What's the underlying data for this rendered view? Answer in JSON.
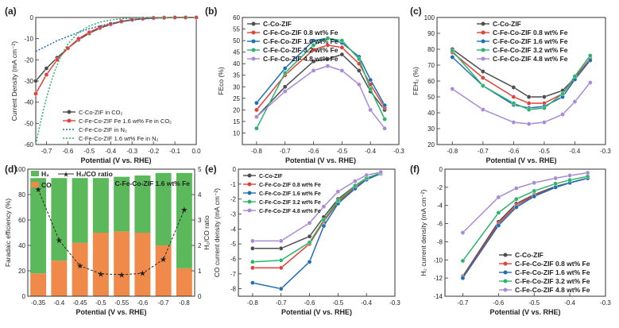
{
  "colors": {
    "c0": "#4d4d4d",
    "c1": "#e0413a",
    "c2": "#1f6eb5",
    "c3": "#2db36b",
    "c4": "#a88ad6",
    "h2": "#5bb85b",
    "co": "#f08a4b",
    "dash": "#2c2c2c"
  },
  "chart_data": [
    {
      "panel": "(a)",
      "type": "line",
      "xlabel": "Potential (V vs. RHE)",
      "ylabel": "Current Density (mA cm⁻²)",
      "xlim": [
        -0.75,
        0.0
      ],
      "ylim": [
        -60,
        0
      ],
      "xticks": [
        -0.7,
        -0.6,
        -0.5,
        -0.4,
        -0.3,
        -0.2,
        -0.1,
        0.0
      ],
      "xtick_labels": [
        "-0.7",
        "-0.6",
        "-0.5",
        "-0.4",
        "-0.3",
        "-0.2",
        "-0.1",
        "0.0"
      ],
      "yticks": [
        0,
        -10,
        -20,
        -30,
        -40,
        -50,
        -60
      ],
      "ytick_labels": [
        "0",
        "-10",
        "-20",
        "-30",
        "-40",
        "-50",
        "-60"
      ],
      "legend_position": "bottom-right",
      "series": [
        {
          "name": "C-Co-ZIF in CO₂",
          "color_key": "c0",
          "dash": false,
          "x": [
            -0.75,
            -0.7,
            -0.65,
            -0.6,
            -0.55,
            -0.5,
            -0.45,
            -0.4,
            -0.35,
            -0.3,
            -0.25,
            -0.2,
            -0.15,
            -0.1,
            -0.05,
            0.0
          ],
          "y": [
            -30,
            -24,
            -19,
            -14.5,
            -10.5,
            -7.5,
            -5,
            -3.3,
            -2,
            -1.2,
            -0.6,
            -0.3,
            -0.1,
            0,
            0,
            0
          ]
        },
        {
          "name": "C-Fe-Co-ZIF Fe 1.6 wt% Fe in CO₂",
          "color_key": "c1",
          "dash": false,
          "x": [
            -0.75,
            -0.7,
            -0.65,
            -0.6,
            -0.55,
            -0.5,
            -0.45,
            -0.4,
            -0.35,
            -0.3,
            -0.25,
            -0.2,
            -0.15,
            -0.1,
            -0.05,
            0.0
          ],
          "y": [
            -36,
            -27,
            -20,
            -14.5,
            -10,
            -7,
            -4.6,
            -3,
            -1.8,
            -1,
            -0.5,
            -0.2,
            -0.1,
            0,
            0,
            0
          ]
        },
        {
          "name": "C-Fe-Co-ZIF in N₂",
          "color_key": "c2",
          "dash": true,
          "x": [
            -0.75,
            -0.7,
            -0.65,
            -0.6,
            -0.55,
            -0.5,
            -0.45,
            -0.4,
            -0.35,
            -0.3,
            -0.25,
            -0.2,
            -0.15,
            -0.1,
            -0.05,
            0.0
          ],
          "y": [
            -16,
            -13.5,
            -11,
            -9,
            -7,
            -5.3,
            -4,
            -2.8,
            -1.9,
            -1.2,
            -0.7,
            -0.4,
            -0.2,
            -0.1,
            0,
            0
          ]
        },
        {
          "name": "C-Fe-Co-ZIF 1.6 wt% Fe in N₂",
          "color_key": "c3",
          "dash": true,
          "x": [
            -0.75,
            -0.72,
            -0.7,
            -0.68,
            -0.66,
            -0.64,
            -0.62,
            -0.6,
            -0.55,
            -0.5,
            -0.45,
            -0.4,
            -0.35,
            -0.3,
            -0.25,
            -0.2,
            -0.15,
            -0.1,
            0.0
          ],
          "y": [
            -60,
            -46,
            -38,
            -31,
            -25,
            -20,
            -16,
            -12.5,
            -7,
            -4,
            -2.2,
            -1.2,
            -0.6,
            -0.3,
            -0.1,
            0,
            0,
            0,
            0
          ]
        }
      ]
    },
    {
      "panel": "(b)",
      "type": "line",
      "xlabel": "Potential (V vs. RHE)",
      "ylabel": "FEco (%)",
      "xlim": [
        -0.85,
        -0.3
      ],
      "ylim": [
        5,
        60
      ],
      "xticks": [
        -0.8,
        -0.7,
        -0.6,
        -0.5,
        -0.4,
        -0.3
      ],
      "xtick_labels": [
        "-0.8",
        "-0.7",
        "-0.6",
        "-0.5",
        "-0.4",
        "-0.3"
      ],
      "yticks": [
        10,
        15,
        20,
        25,
        30,
        35,
        40,
        45,
        50,
        55,
        60
      ],
      "ytick_labels": [
        "10",
        "15",
        "20",
        "25",
        "30",
        "35",
        "40",
        "45",
        "50",
        "55",
        "60"
      ],
      "legend_position": "top-left",
      "x": [
        -0.8,
        -0.7,
        -0.6,
        -0.55,
        -0.5,
        -0.44,
        -0.4,
        -0.35
      ],
      "series": [
        {
          "name": "C-Co-ZIF",
          "color_key": "c0",
          "y": [
            17,
            30,
            41,
            42,
            44,
            37,
            28,
            20
          ]
        },
        {
          "name": "C-Fe-Co-ZIF 0.8 wt% Fe",
          "color_key": "c1",
          "y": [
            20,
            35,
            46,
            48,
            47,
            40,
            31,
            21
          ]
        },
        {
          "name": "C-Fe-Co-ZIF 1.6 wt% Fe",
          "color_key": "c2",
          "y": [
            23,
            38,
            50,
            51,
            49,
            43,
            33,
            22
          ]
        },
        {
          "name": "C-Fe-Co-ZIF 3.2 wt% Fe",
          "color_key": "c3",
          "y": [
            12,
            36,
            48,
            51,
            50,
            42,
            29,
            16
          ]
        },
        {
          "name": "C-Fe-Co-ZIF 4.8 wt% Fe",
          "color_key": "c4",
          "y": [
            17,
            28,
            37,
            39,
            37,
            31,
            20,
            12
          ]
        }
      ]
    },
    {
      "panel": "(c)",
      "type": "line",
      "xlabel": "Potential (V vs. RHE)",
      "ylabel": "FEH₂ (%)",
      "xlim": [
        -0.85,
        -0.3
      ],
      "ylim": [
        20,
        100
      ],
      "xticks": [
        -0.8,
        -0.7,
        -0.6,
        -0.5,
        -0.4,
        -0.3
      ],
      "xtick_labels": [
        "-0.8",
        "-0.7",
        "-0.6",
        "-0.5",
        "-0.4",
        "-0.3"
      ],
      "yticks": [
        20,
        30,
        40,
        50,
        60,
        70,
        80,
        90,
        100
      ],
      "ytick_labels": [
        "20",
        "30",
        "40",
        "50",
        "60",
        "70",
        "80",
        "90",
        "100"
      ],
      "legend_position": "top-right",
      "x": [
        -0.8,
        -0.7,
        -0.6,
        -0.55,
        -0.5,
        -0.44,
        -0.4,
        -0.35
      ],
      "series": [
        {
          "name": "C-Co-ZIF",
          "color_key": "c0",
          "y": [
            80,
            66,
            56,
            50,
            50,
            54,
            62,
            74
          ]
        },
        {
          "name": "C-Fe-Co-ZIF 0.8 wt% Fe",
          "color_key": "c1",
          "y": [
            78,
            62,
            50,
            46,
            46,
            52,
            62,
            74
          ]
        },
        {
          "name": "C-Fe-Co-ZIF 1.6 wt% Fe",
          "color_key": "c2",
          "y": [
            75,
            57,
            45,
            43,
            44,
            50,
            61,
            73
          ]
        },
        {
          "name": "C-Fe-Co-ZIF 3.2 wt% Fe",
          "color_key": "c3",
          "y": [
            79,
            57,
            46,
            42,
            43,
            52,
            63,
            76
          ]
        },
        {
          "name": "C-Fe-Co-ZIF 4.8 wt% Fe",
          "color_key": "c4",
          "y": [
            55,
            42,
            34,
            33,
            34,
            39,
            47,
            59
          ]
        }
      ]
    },
    {
      "panel": "(d)",
      "type": "bar",
      "xlabel": "Potential (V vs. RHE)",
      "ylabel": "Faradaic efficiency (%)",
      "y2label": "H₂/CO ratio",
      "annotation": "C-Fe-Co-ZIF 1.6 wt% Fe",
      "categories": [
        "-0.35",
        "-0.4",
        "-0.45",
        "-0.5",
        "-0.55",
        "-0.6",
        "-0.7",
        "-0.8"
      ],
      "ylim": [
        0,
        100
      ],
      "y2lim": [
        0,
        5
      ],
      "yticks": [
        0,
        20,
        40,
        60,
        80,
        100
      ],
      "ytick_labels": [
        "0",
        "20",
        "40",
        "60",
        "80",
        "100"
      ],
      "y2ticks": [
        0,
        1,
        2,
        3,
        4,
        5
      ],
      "y2tick_labels": [
        "0",
        "1",
        "2",
        "3",
        "4",
        "5"
      ],
      "legend": [
        "H₂",
        "CO",
        "H₂/CO ratio"
      ],
      "legend_position": "top-left",
      "co": [
        18,
        28,
        42,
        50,
        51,
        50,
        40,
        22
      ],
      "h2": [
        75,
        65,
        51,
        43,
        43,
        45,
        57,
        75
      ],
      "ratio": [
        4.2,
        2.2,
        1.2,
        0.88,
        0.85,
        0.9,
        1.45,
        3.4
      ]
    },
    {
      "panel": "(e)",
      "type": "line",
      "xlabel": "Potential (V vs. RHE)",
      "ylabel": "CO current density (mA cm⁻²)",
      "xlim": [
        -0.85,
        -0.3
      ],
      "ylim": [
        -8.5,
        0
      ],
      "xticks": [
        -0.8,
        -0.7,
        -0.6,
        -0.5,
        -0.4,
        -0.3
      ],
      "xtick_labels": [
        "-0.8",
        "-0.7",
        "-0.6",
        "-0.5",
        "-0.4",
        "-0.3"
      ],
      "yticks": [
        0,
        -1,
        -2,
        -3,
        -4,
        -5,
        -6,
        -7,
        -8
      ],
      "ytick_labels": [
        "0",
        "-1",
        "-2",
        "-3",
        "-4",
        "-5",
        "-6",
        "-7",
        "-8"
      ],
      "legend_position": "top-left",
      "x": [
        -0.8,
        -0.7,
        -0.6,
        -0.55,
        -0.5,
        -0.44,
        -0.4,
        -0.35
      ],
      "series": [
        {
          "name": "C-Co-ZIF",
          "color_key": "c0",
          "y": [
            -5.3,
            -5.3,
            -4.5,
            -3.2,
            -2.0,
            -1.1,
            -0.6,
            -0.3
          ]
        },
        {
          "name": "C-Fe-Co-ZIF 0.8 wt% Fe",
          "color_key": "c1",
          "y": [
            -6.6,
            -6.6,
            -5.0,
            -3.5,
            -2.2,
            -1.2,
            -0.7,
            -0.3
          ]
        },
        {
          "name": "C-Fe-Co-ZIF 1.6 wt% Fe",
          "color_key": "c2",
          "y": [
            -7.6,
            -8.0,
            -6.2,
            -3.8,
            -2.3,
            -1.3,
            -0.7,
            -0.3
          ]
        },
        {
          "name": "C-Fe-Co-ZIF 3.2 wt% Fe",
          "color_key": "c3",
          "y": [
            -6.2,
            -6.1,
            -4.9,
            -3.4,
            -2.1,
            -1.1,
            -0.6,
            -0.25
          ]
        },
        {
          "name": "C-Fe-Co-ZIF 4.8 wt% Fe",
          "color_key": "c4",
          "y": [
            -4.8,
            -4.8,
            -3.6,
            -2.5,
            -1.5,
            -0.8,
            -0.4,
            -0.2
          ]
        }
      ]
    },
    {
      "panel": "(f)",
      "type": "line",
      "xlabel": "Potential (V vs. RHE)",
      "ylabel": "H₂ current density (mA cm⁻²)",
      "xlim": [
        -0.75,
        -0.3
      ],
      "ylim": [
        -14,
        0
      ],
      "xticks": [
        -0.7,
        -0.6,
        -0.5,
        -0.4,
        -0.3
      ],
      "xtick_labels": [
        "-0.7",
        "-0.6",
        "-0.5",
        "-0.4",
        "-0.3"
      ],
      "yticks": [
        0,
        -2,
        -4,
        -6,
        -8,
        -10,
        -12,
        -14
      ],
      "ytick_labels": [
        "0",
        "-2",
        "-4",
        "-6",
        "-8",
        "-10",
        "-12",
        "-14"
      ],
      "legend_position": "bottom-right",
      "x": [
        -0.7,
        -0.6,
        -0.55,
        -0.5,
        -0.44,
        -0.4,
        -0.35
      ],
      "series": [
        {
          "name": "C-Co-ZIF",
          "color_key": "c0",
          "y": [
            -11.8,
            -5.8,
            -3.8,
            -2.8,
            -1.9,
            -1.5,
            -1.0
          ]
        },
        {
          "name": "C-Fe-Co-ZIF 0.8 wt% Fe",
          "color_key": "c1",
          "y": [
            -11.9,
            -6.0,
            -4.0,
            -2.9,
            -2.0,
            -1.5,
            -1.0
          ]
        },
        {
          "name": "C-Fe-Co-ZIF 1.6 wt% Fe",
          "color_key": "c2",
          "y": [
            -12.0,
            -6.2,
            -4.2,
            -3.0,
            -2.0,
            -1.5,
            -1.0
          ]
        },
        {
          "name": "C-Fe-Co-ZIF 3.2 wt% Fe",
          "color_key": "c3",
          "y": [
            -10.1,
            -4.8,
            -3.3,
            -2.4,
            -1.6,
            -1.2,
            -0.8
          ]
        },
        {
          "name": "C-Fe-Co-ZIF 4.8 wt% Fe",
          "color_key": "c4",
          "y": [
            -7.0,
            -3.1,
            -2.1,
            -1.5,
            -1.0,
            -0.7,
            -0.4
          ]
        }
      ]
    }
  ]
}
